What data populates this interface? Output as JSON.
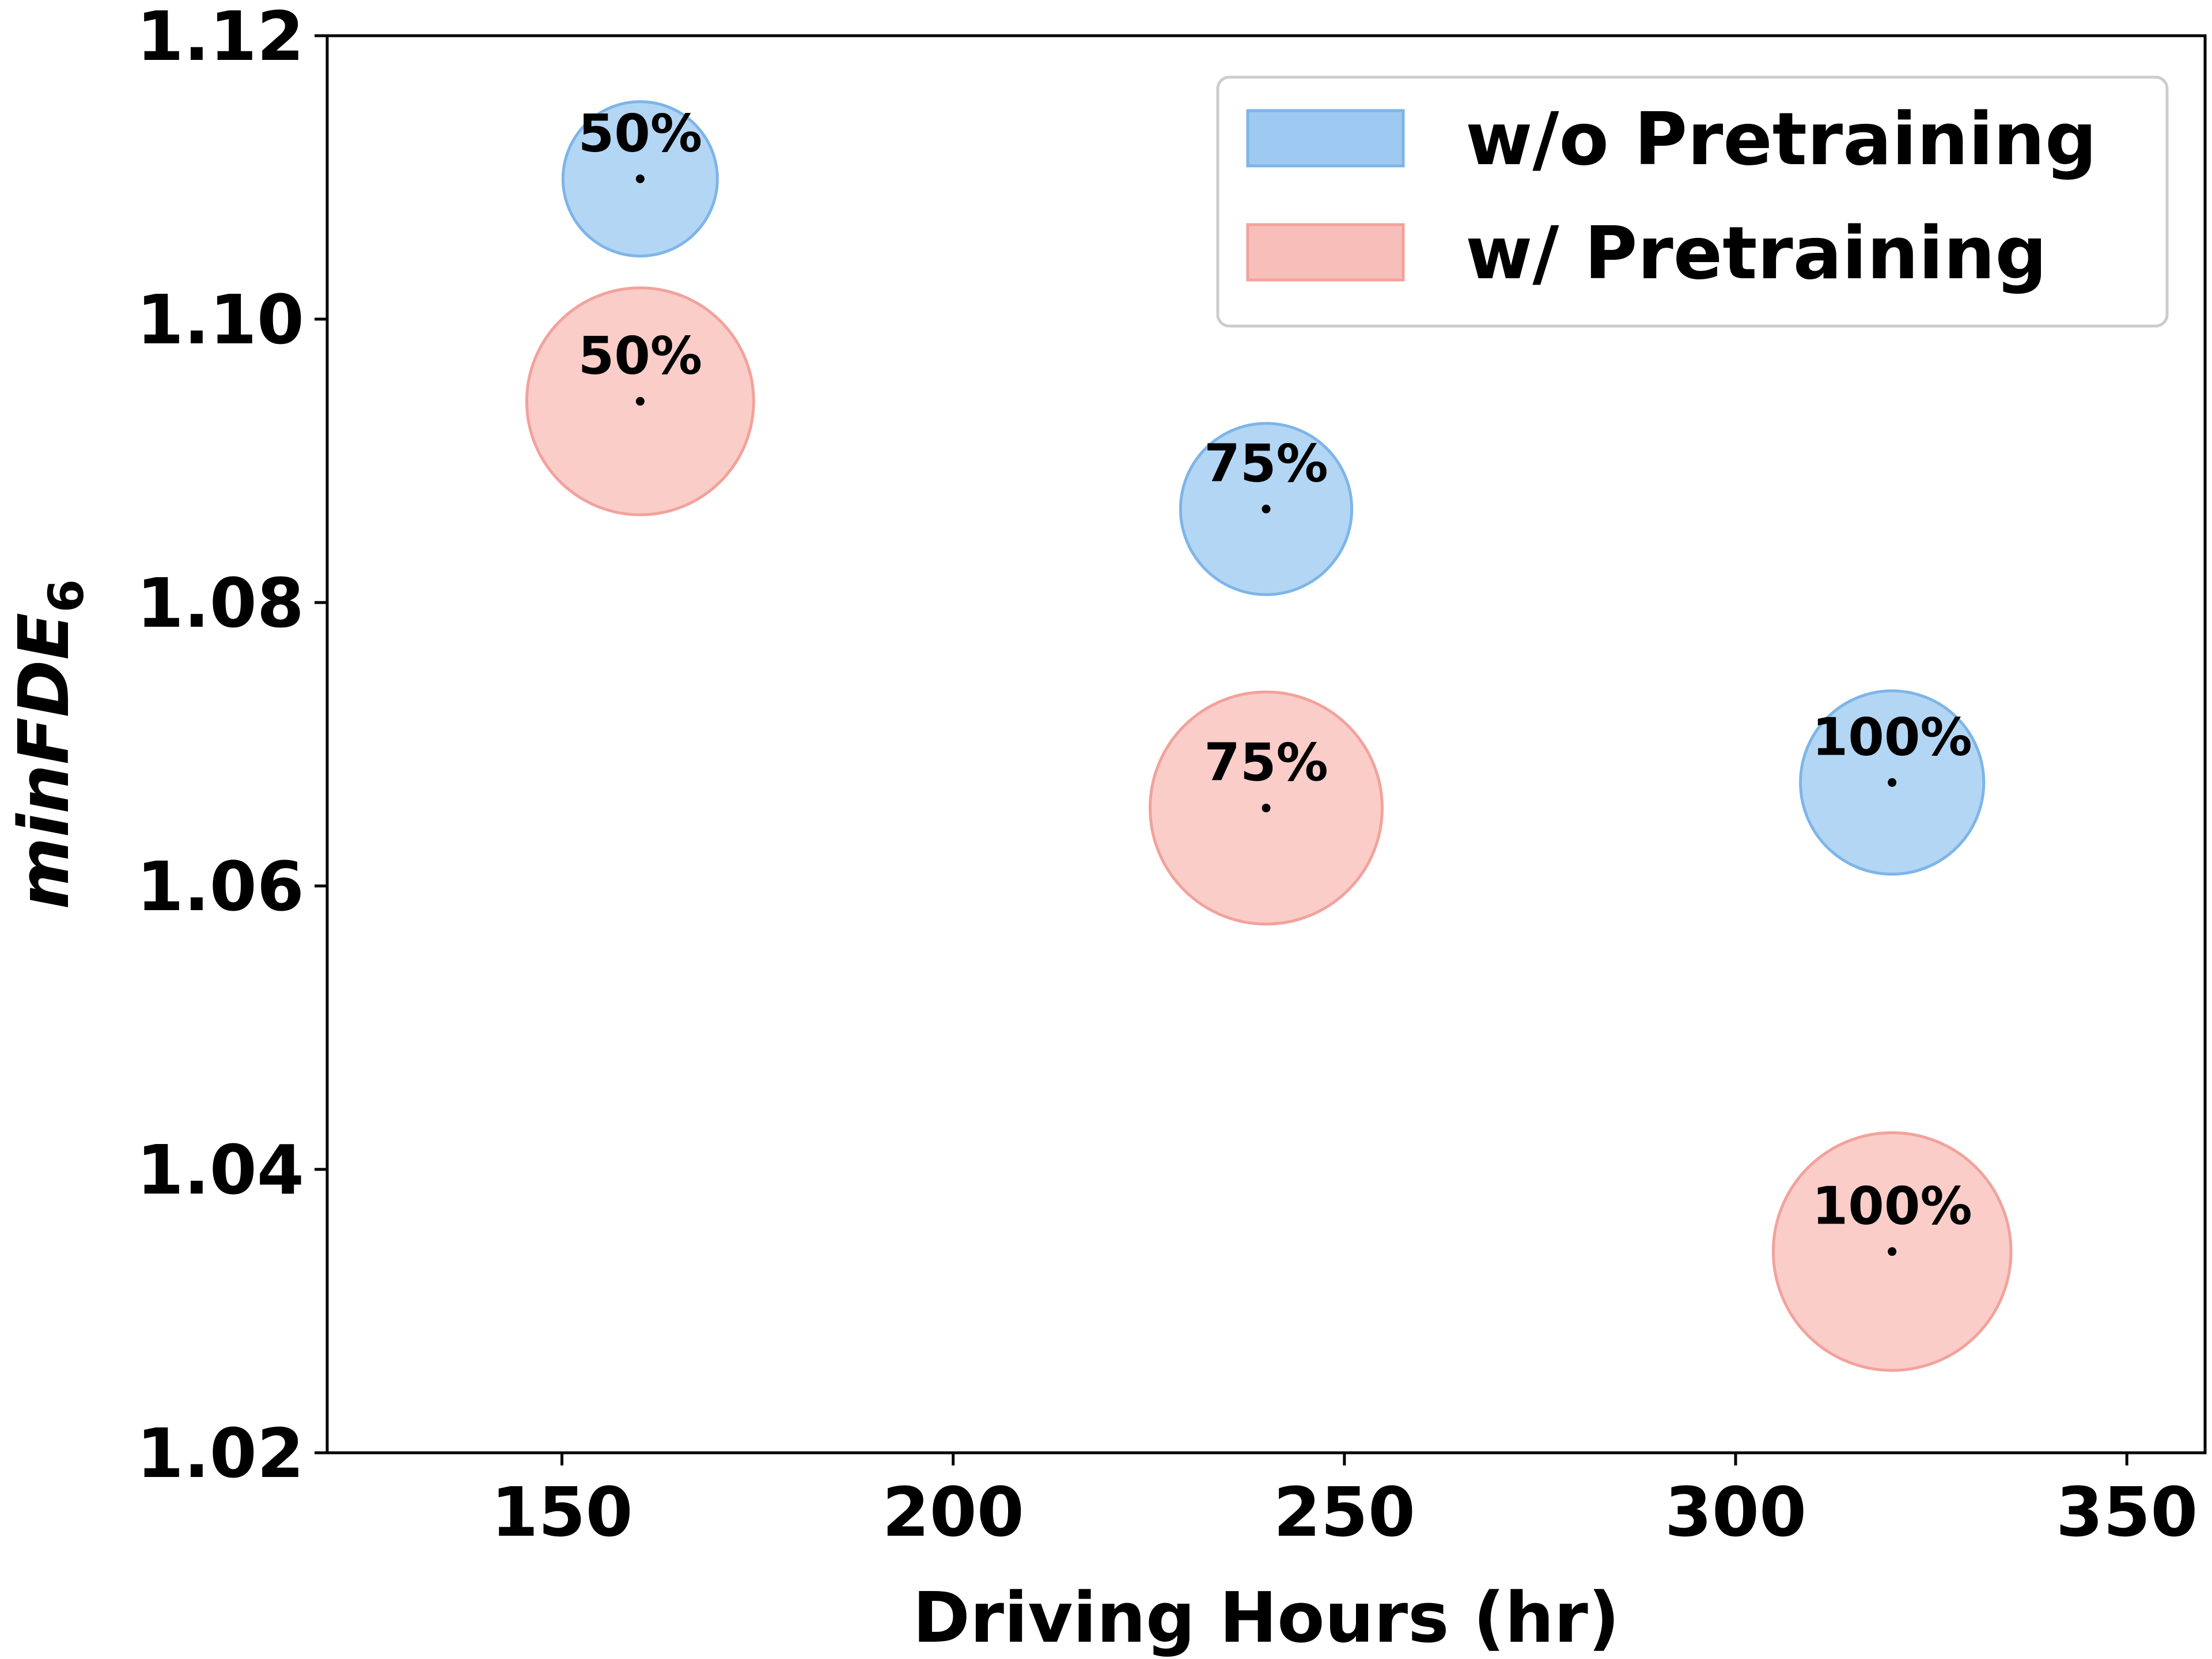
{
  "chart_data": {
    "type": "scatter",
    "subtype": "bubble",
    "title": "",
    "xlabel": "Driving Hours (hr)",
    "ylabel": {
      "main": "minFDE",
      "subscript": "6"
    },
    "xlim": [
      120,
      360
    ],
    "ylim": [
      1.02,
      1.12
    ],
    "xticks": [
      150,
      200,
      250,
      300,
      350
    ],
    "xtick_labels": [
      "150",
      "200",
      "250",
      "300",
      "350"
    ],
    "yticks": [
      1.02,
      1.04,
      1.06,
      1.08,
      1.1,
      1.12
    ],
    "ytick_labels": [
      "1.02",
      "1.04",
      "1.06",
      "1.08",
      "1.10",
      "1.12"
    ],
    "grid": false,
    "legend_position": "top-right",
    "series": [
      {
        "name": "w/o Pretraining",
        "color": "#9ECAF1",
        "edge_color": "#7DB5E8",
        "points": [
          {
            "x": 160,
            "y": 1.1099,
            "size": 1,
            "label": "50%"
          },
          {
            "x": 240,
            "y": 1.0866,
            "size": 1.23,
            "label": "75%"
          },
          {
            "x": 320,
            "y": 1.0673,
            "size": 1.41,
            "label": "100%"
          }
        ]
      },
      {
        "name": "w/ Pretraining",
        "color": "#F8BFBA",
        "edge_color": "#F2A29B",
        "points": [
          {
            "x": 160,
            "y": 1.0942,
            "size": 2.16,
            "label": "50%"
          },
          {
            "x": 240,
            "y": 1.0655,
            "size": 2.26,
            "label": "75%"
          },
          {
            "x": 320,
            "y": 1.0342,
            "size": 2.37,
            "label": "100%"
          }
        ]
      }
    ]
  }
}
